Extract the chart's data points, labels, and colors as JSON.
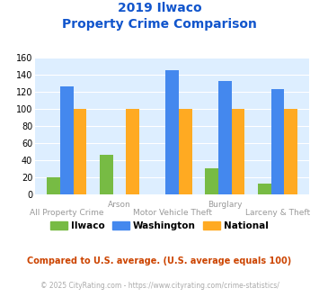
{
  "title_line1": "2019 Ilwaco",
  "title_line2": "Property Crime Comparison",
  "categories": [
    "All Property Crime",
    "Arson",
    "Motor Vehicle Theft",
    "Burglary",
    "Larceny & Theft"
  ],
  "ilwaco": [
    20,
    47,
    0,
    31,
    13
  ],
  "washington": [
    127,
    0,
    146,
    133,
    123
  ],
  "national": [
    100,
    100,
    100,
    100,
    100
  ],
  "ilwaco_color": "#77bb44",
  "washington_color": "#4488ee",
  "national_color": "#ffaa22",
  "bg_color": "#ddeeff",
  "title_color": "#1155cc",
  "xlabel_color": "#999999",
  "ylim": [
    0,
    160
  ],
  "yticks": [
    0,
    20,
    40,
    60,
    80,
    100,
    120,
    140,
    160
  ],
  "legend_labels": [
    "Ilwaco",
    "Washington",
    "National"
  ],
  "footer_text": "Compared to U.S. average. (U.S. average equals 100)",
  "copyright_text": "© 2025 CityRating.com - https://www.cityrating.com/crime-statistics/",
  "footer_color": "#cc4400",
  "copyright_color": "#aaaaaa",
  "bar_width": 0.25
}
